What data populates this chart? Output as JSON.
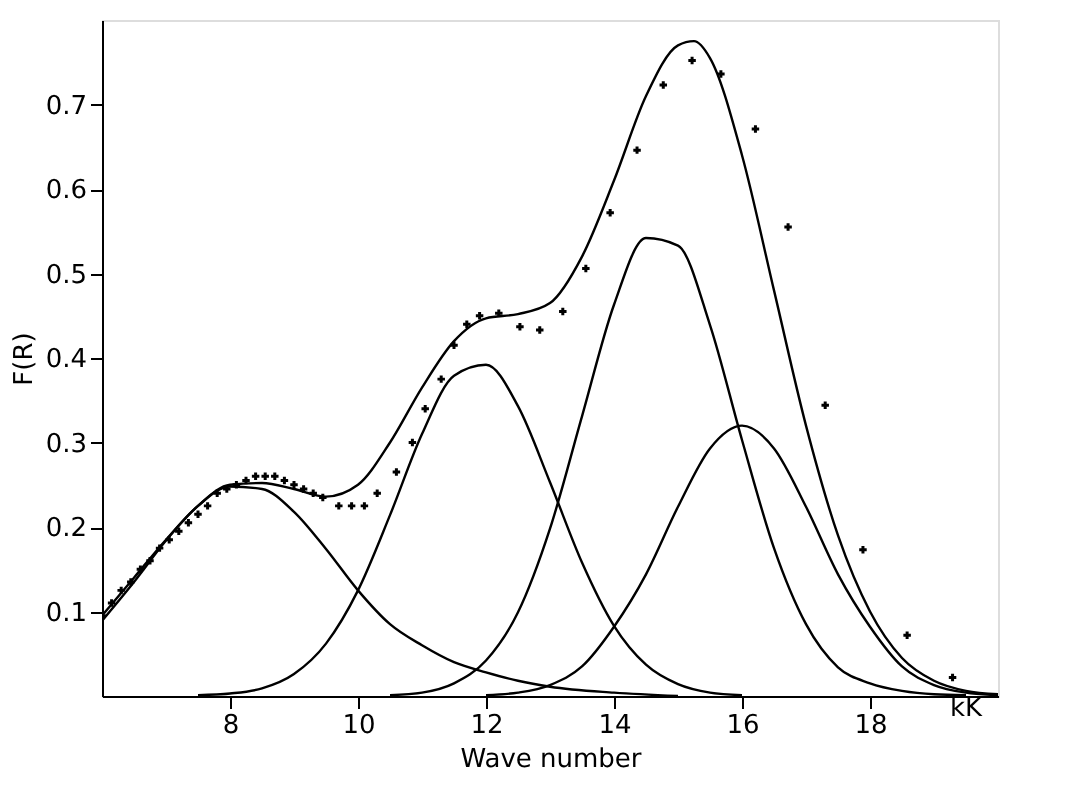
{
  "chart_data": {
    "type": "line",
    "xlabel": "Wave number",
    "ylabel": "F(R)",
    "annotations": [
      "kK"
    ],
    "xlim": [
      6,
      20
    ],
    "xticks": [
      8,
      10,
      12,
      14,
      16,
      18
    ],
    "ylim": [
      0,
      0.8
    ],
    "yticks": [
      0.1,
      0.2,
      0.3,
      0.4,
      0.5,
      0.6,
      0.7
    ],
    "grid": false,
    "line_style": "solid",
    "series": [
      {
        "color": "#000000",
        "x": [
          6,
          6.5,
          7,
          7.5,
          8,
          8.5,
          9,
          9.5,
          10,
          10.5,
          11,
          11.5,
          12,
          12.5,
          13,
          13.5,
          14,
          14.5,
          15,
          15.25,
          15.5,
          16,
          16.5,
          17,
          17.5,
          18,
          18.5,
          19,
          19.5,
          20
        ],
        "values": [
          0.095,
          0.14,
          0.185,
          0.225,
          0.25,
          0.252,
          0.245,
          0.236,
          0.25,
          0.3,
          0.365,
          0.42,
          0.447,
          0.452,
          0.465,
          0.52,
          0.61,
          0.71,
          0.77,
          0.775,
          0.755,
          0.64,
          0.48,
          0.32,
          0.19,
          0.1,
          0.045,
          0.018,
          0.006,
          0.002
        ]
      },
      {
        "color": "#000000",
        "x": [
          6,
          6.5,
          7,
          7.5,
          8,
          8.5,
          9,
          9.5,
          10,
          10.5,
          11,
          11.5,
          12,
          12.5,
          13,
          14,
          15
        ],
        "values": [
          0.089,
          0.135,
          0.184,
          0.225,
          0.248,
          0.245,
          0.218,
          0.174,
          0.125,
          0.085,
          0.06,
          0.04,
          0.028,
          0.018,
          0.011,
          0.004,
          0.0
        ]
      },
      {
        "color": "#000000",
        "x": [
          7.5,
          8,
          8.5,
          9,
          9.5,
          10,
          10.5,
          11,
          11.5,
          12,
          12.5,
          13,
          13.5,
          14,
          14.5,
          15,
          15.5,
          16
        ],
        "values": [
          0.001,
          0.003,
          0.009,
          0.026,
          0.062,
          0.125,
          0.214,
          0.31,
          0.379,
          0.392,
          0.343,
          0.253,
          0.158,
          0.083,
          0.037,
          0.014,
          0.004,
          0.001
        ]
      },
      {
        "color": "#000000",
        "x": [
          10.5,
          11,
          11.5,
          12,
          12.5,
          13,
          13.5,
          14,
          14.5,
          15,
          15.5,
          16,
          16.5,
          17,
          17.5,
          18,
          18.5,
          19,
          19.5
        ],
        "values": [
          0.001,
          0.004,
          0.015,
          0.042,
          0.099,
          0.198,
          0.331,
          0.463,
          0.542,
          0.533,
          0.439,
          0.303,
          0.175,
          0.085,
          0.034,
          0.015,
          0.006,
          0.002,
          0.001
        ]
      },
      {
        "color": "#000000",
        "x": [
          12,
          12.5,
          13,
          13.5,
          14,
          14.5,
          15,
          15.5,
          16,
          16.5,
          17,
          17.5,
          18,
          18.5,
          19,
          19.5,
          20
        ],
        "values": [
          0.001,
          0.004,
          0.013,
          0.035,
          0.082,
          0.144,
          0.224,
          0.293,
          0.32,
          0.293,
          0.224,
          0.144,
          0.082,
          0.035,
          0.013,
          0.004,
          0.001
        ]
      },
      {
        "type": "scatter",
        "marker": "cross",
        "color": "#000000",
        "x": [
          6.0,
          6.15,
          6.3,
          6.45,
          6.6,
          6.75,
          6.9,
          7.05,
          7.2,
          7.35,
          7.5,
          7.65,
          7.8,
          7.95,
          8.1,
          8.25,
          8.4,
          8.55,
          8.7,
          8.85,
          9.0,
          9.15,
          9.3,
          9.45,
          9.7,
          9.9,
          10.1,
          10.3,
          10.6,
          10.85,
          11.05,
          11.3,
          11.5,
          11.7,
          11.9,
          12.2,
          12.53,
          12.84,
          13.2,
          13.56,
          13.94,
          14.36,
          14.77,
          15.22,
          15.67,
          16.21,
          16.72,
          17.3,
          17.89,
          18.58,
          19.29
        ],
        "values": [
          0.095,
          0.11,
          0.125,
          0.135,
          0.15,
          0.16,
          0.175,
          0.185,
          0.195,
          0.205,
          0.215,
          0.225,
          0.24,
          0.245,
          0.25,
          0.255,
          0.26,
          0.26,
          0.26,
          0.255,
          0.25,
          0.245,
          0.24,
          0.235,
          0.225,
          0.225,
          0.225,
          0.24,
          0.265,
          0.3,
          0.34,
          0.375,
          0.415,
          0.44,
          0.45,
          0.453,
          0.437,
          0.433,
          0.455,
          0.506,
          0.572,
          0.646,
          0.723,
          0.752,
          0.736,
          0.671,
          0.555,
          0.344,
          0.173,
          0.072,
          0.022
        ]
      }
    ]
  }
}
